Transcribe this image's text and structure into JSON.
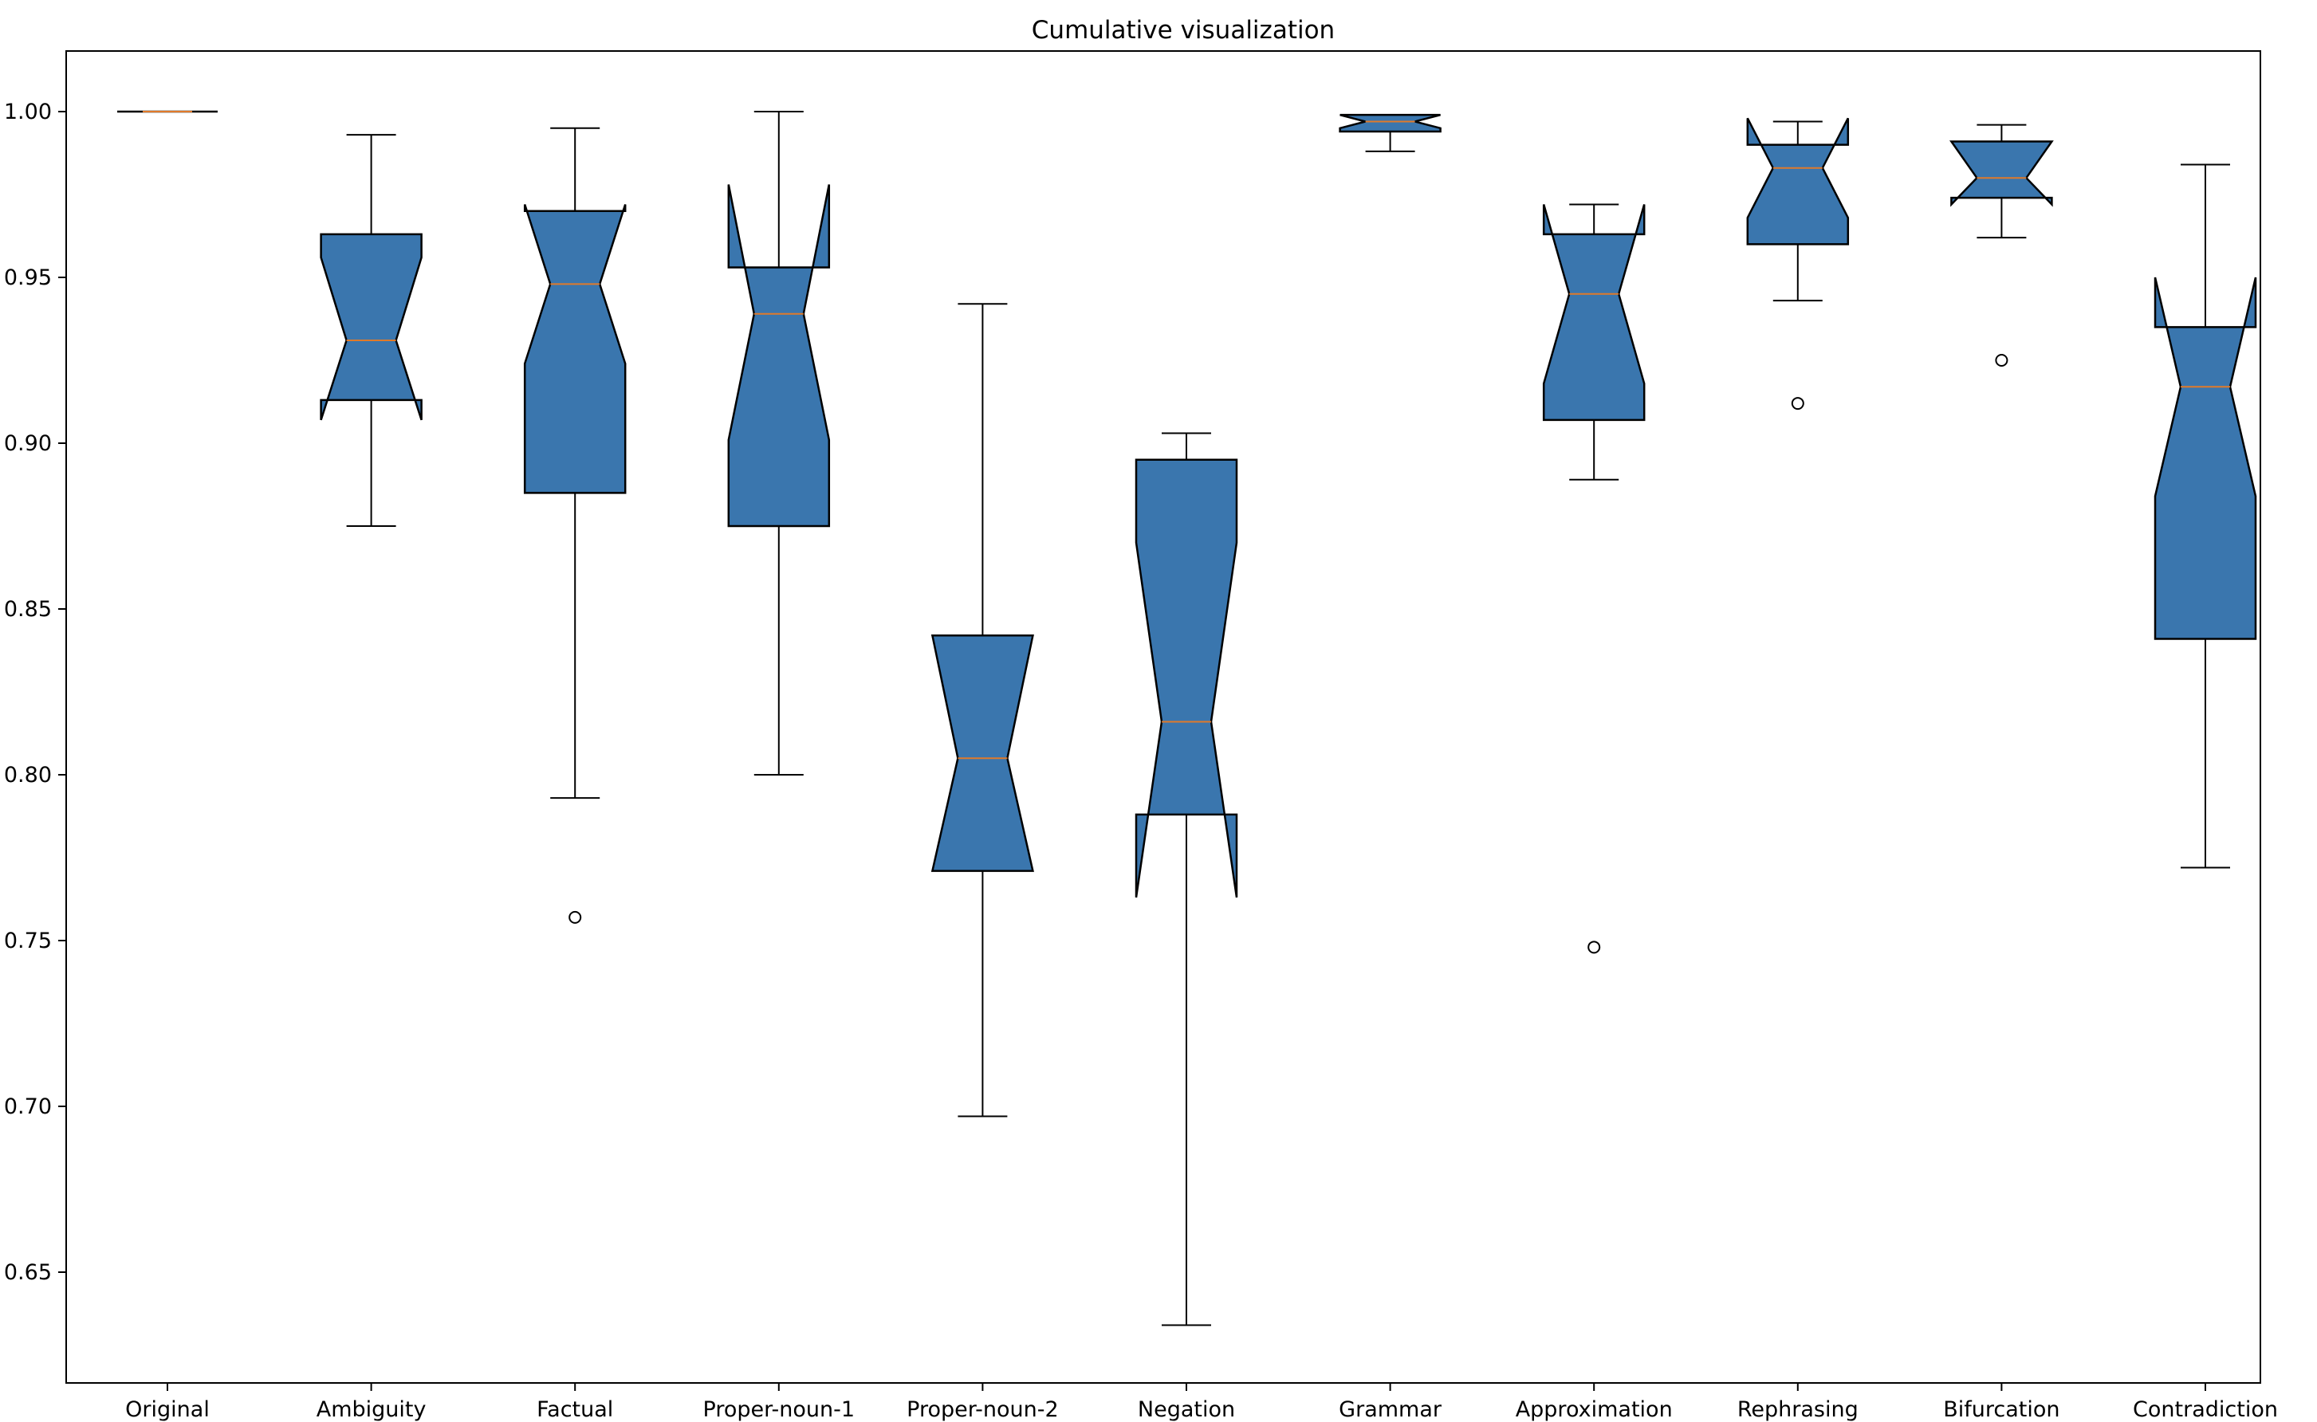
{
  "chart_data": {
    "type": "box",
    "title": "Cumulative visualization",
    "xlabel": "",
    "ylabel": "",
    "ylim": [
      0.62,
      1.0185
    ],
    "yticks": [
      0.65,
      0.7,
      0.75,
      0.8,
      0.85,
      0.9,
      0.95,
      1.0
    ],
    "ytick_labels": [
      "0.65",
      "0.70",
      "0.75",
      "0.80",
      "0.85",
      "0.90",
      "0.95",
      "1.00"
    ],
    "notched": true,
    "grid": false,
    "colors": {
      "box_fill": "#3a76ae",
      "median": "#e07a2a",
      "edge": "#000000"
    },
    "categories": [
      "Original",
      "Ambiguity",
      "Factual",
      "Proper-noun-1",
      "Proper-noun-2",
      "Negation",
      "Grammar",
      "Approximation",
      "Rephrasing",
      "Bifurcation",
      "Contradiction"
    ],
    "boxes": [
      {
        "label": "Original",
        "whislo": 1.0,
        "q1": 1.0,
        "med": 1.0,
        "q3": 1.0,
        "whishi": 1.0,
        "cilo": 1.0,
        "cihi": 1.0,
        "fliers": []
      },
      {
        "label": "Ambiguity",
        "whislo": 0.875,
        "q1": 0.913,
        "med": 0.931,
        "q3": 0.963,
        "whishi": 0.993,
        "cilo": 0.907,
        "cihi": 0.956,
        "fliers": []
      },
      {
        "label": "Factual",
        "whislo": 0.793,
        "q1": 0.885,
        "med": 0.948,
        "q3": 0.97,
        "whishi": 0.995,
        "cilo": 0.924,
        "cihi": 0.972,
        "fliers": [
          0.757
        ]
      },
      {
        "label": "Proper-noun-1",
        "whislo": 0.8,
        "q1": 0.875,
        "med": 0.939,
        "q3": 0.953,
        "whishi": 1.0,
        "cilo": 0.901,
        "cihi": 0.978,
        "fliers": []
      },
      {
        "label": "Proper-noun-2",
        "whislo": 0.697,
        "q1": 0.771,
        "med": 0.805,
        "q3": 0.842,
        "whishi": 0.942,
        "cilo": 0.771,
        "cihi": 0.842,
        "fliers": []
      },
      {
        "label": "Negation",
        "whislo": 0.634,
        "q1": 0.788,
        "med": 0.816,
        "q3": 0.895,
        "whishi": 0.903,
        "cilo": 0.763,
        "cihi": 0.87,
        "fliers": []
      },
      {
        "label": "Grammar",
        "whislo": 0.988,
        "q1": 0.994,
        "med": 0.997,
        "q3": 0.999,
        "whishi": 0.999,
        "cilo": 0.995,
        "cihi": 0.999,
        "fliers": []
      },
      {
        "label": "Approximation",
        "whislo": 0.889,
        "q1": 0.907,
        "med": 0.945,
        "q3": 0.963,
        "whishi": 0.972,
        "cilo": 0.918,
        "cihi": 0.972,
        "fliers": [
          0.748
        ]
      },
      {
        "label": "Rephrasing",
        "whislo": 0.943,
        "q1": 0.96,
        "med": 0.983,
        "q3": 0.99,
        "whishi": 0.997,
        "cilo": 0.968,
        "cihi": 0.998,
        "fliers": [
          0.912
        ]
      },
      {
        "label": "Bifurcation",
        "whislo": 0.962,
        "q1": 0.974,
        "med": 0.98,
        "q3": 0.991,
        "whishi": 0.996,
        "cilo": 0.972,
        "cihi": 0.991,
        "fliers": [
          0.925
        ]
      },
      {
        "label": "Contradiction",
        "whislo": 0.772,
        "q1": 0.841,
        "med": 0.917,
        "q3": 0.935,
        "whishi": 0.984,
        "cilo": 0.884,
        "cihi": 0.95,
        "fliers": []
      }
    ]
  }
}
